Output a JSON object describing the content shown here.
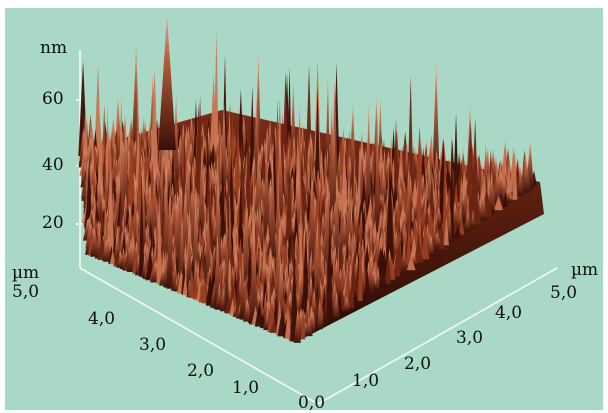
{
  "figure": {
    "background_color": "#a9d8c6",
    "surface_colors": [
      "#3a0f06",
      "#6b2412",
      "#9a3f22",
      "#c87452",
      "#e2a784"
    ],
    "z_axis": {
      "unit": "nm",
      "ticks": [
        "60",
        "40",
        "20"
      ]
    },
    "left_axis": {
      "unit": "µm",
      "ticks": [
        "5,0",
        "4,0",
        "3,0",
        "2,0",
        "1,0"
      ]
    },
    "right_axis": {
      "unit": "µm",
      "ticks": [
        "5,0",
        "4,0",
        "3,0",
        "2,0",
        "1,0"
      ]
    },
    "origin_label": "0,0"
  }
}
